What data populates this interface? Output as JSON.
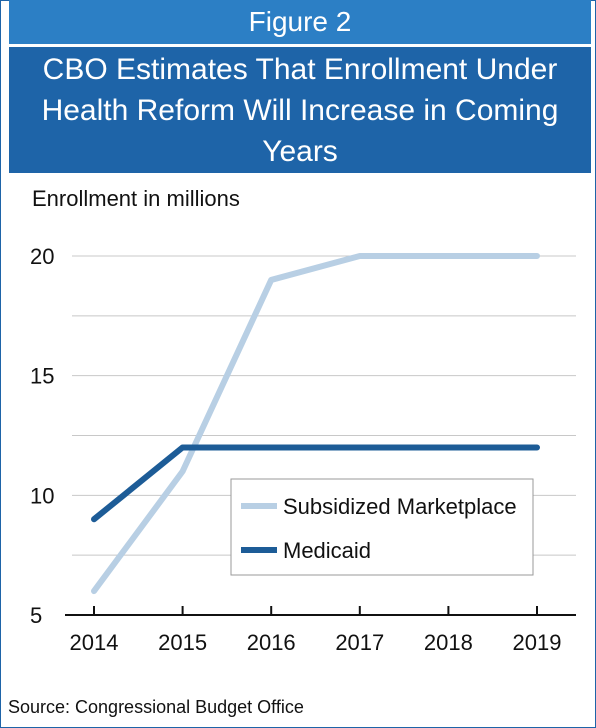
{
  "header": {
    "figure_label": "Figure 2",
    "title": "CBO Estimates That Enrollment Under Health Reform Will Increase in Coming Years"
  },
  "source": "Source: Congressional Budget Office",
  "colors": {
    "header_light": "#2c7fc5",
    "header_dark": "#1e64a8",
    "marketplace": "#b8cfe4",
    "medicaid": "#1d5c97"
  },
  "chart_data": {
    "type": "line",
    "ylabel": "Enrollment in millions",
    "x": [
      "2014",
      "2015",
      "2016",
      "2017",
      "2018",
      "2019"
    ],
    "yticks": [
      "5",
      "10",
      "15",
      "20"
    ],
    "ylim": [
      5,
      21.5
    ],
    "grid": "horizontal",
    "legend": "center-right",
    "series": [
      {
        "name": "Subsidized Marketplace",
        "values": [
          6,
          11,
          19,
          20,
          20,
          20
        ]
      },
      {
        "name": "Medicaid",
        "values": [
          9,
          12,
          12,
          12,
          12,
          12
        ]
      }
    ]
  }
}
